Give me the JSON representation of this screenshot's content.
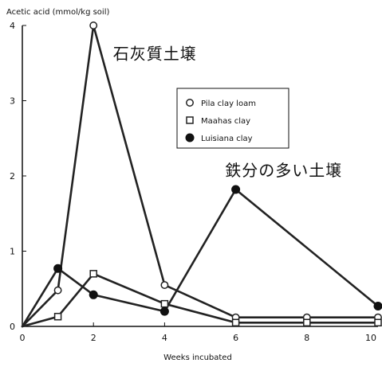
{
  "chart_data": {
    "type": "line",
    "xlabel": "Weeks incubated",
    "ylabel": "Acetic acid (mmol/kg soil)",
    "xlim": [
      0,
      10
    ],
    "ylim": [
      0,
      4
    ],
    "xticks": [
      "0",
      "2",
      "4",
      "6",
      "8",
      "10"
    ],
    "yticks": [
      "0",
      "1",
      "2",
      "3",
      "4"
    ],
    "grid": false,
    "legend_position": "top-right",
    "series": [
      {
        "name": "Pila clay loam",
        "marker": "open-circle",
        "x": [
          0,
          1,
          2,
          4,
          6,
          8,
          10
        ],
        "y": [
          0,
          0.48,
          4.0,
          0.55,
          0.12,
          0.12,
          0.12
        ]
      },
      {
        "name": "Maahas clay",
        "marker": "open-square",
        "x": [
          0,
          1,
          2,
          4,
          6,
          8,
          10
        ],
        "y": [
          0,
          0.13,
          0.7,
          0.3,
          0.05,
          0.05,
          0.05
        ]
      },
      {
        "name": "Luisiana clay",
        "marker": "filled-circle",
        "x": [
          0,
          1,
          2,
          4,
          6,
          10
        ],
        "y": [
          0,
          0.77,
          0.42,
          0.2,
          1.82,
          0.27
        ]
      }
    ],
    "annotations": [
      {
        "text": "石灰質土壌",
        "x": 2.55,
        "y": 3.55
      },
      {
        "text": "鉄分の多い土壌",
        "x": 5.7,
        "y": 2.0
      }
    ]
  },
  "colors": {
    "line": "#222222",
    "marker_fill": "#ffffff",
    "marker_solid": "#111111",
    "axis": "#111111"
  }
}
